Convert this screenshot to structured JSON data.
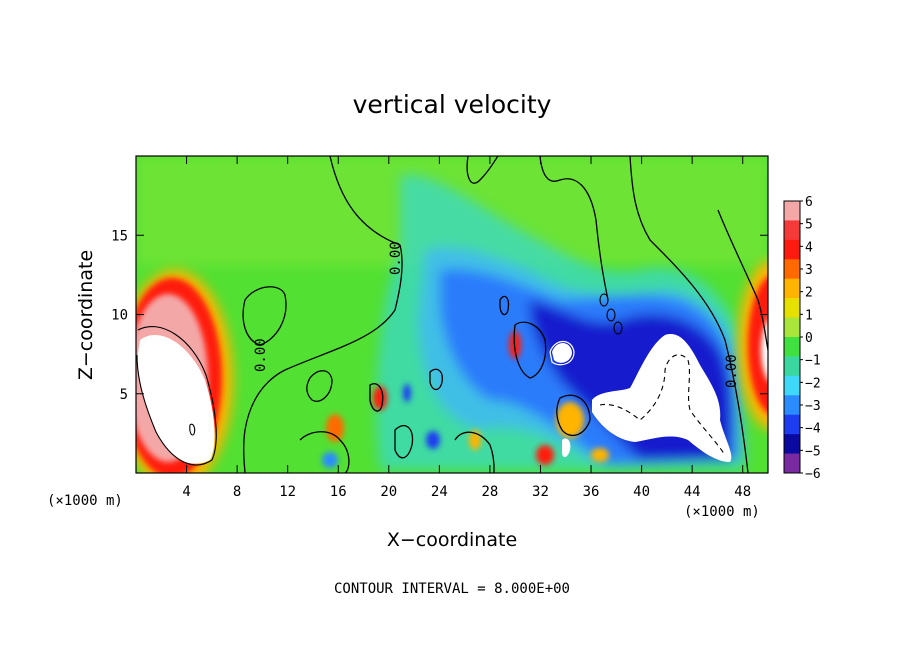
{
  "chart_data": {
    "type": "heatmap",
    "title": "vertical velocity",
    "xlabel": "X−coordinate",
    "ylabel": "Z−coordinate",
    "x_unit_label": "(×1000 m)",
    "y_unit_label": "(×1000 m)",
    "xlim": [
      0,
      50
    ],
    "ylim": [
      0,
      20
    ],
    "x_ticks": [
      "4",
      "8",
      "12",
      "16",
      "20",
      "24",
      "28",
      "32",
      "36",
      "40",
      "44",
      "48"
    ],
    "y_ticks": [
      "5",
      "10",
      "15"
    ],
    "colorbar": {
      "levels": [
        "6",
        "5",
        "4",
        "3",
        "2",
        "1",
        "0",
        "−1",
        "−2",
        "−3",
        "−4",
        "−5",
        "−6"
      ],
      "range": [
        -6,
        6
      ],
      "colors": [
        "#f4a7a7",
        "#f53a3a",
        "#ff1a10",
        "#ff6a00",
        "#ffb400",
        "#e6e000",
        "#a8e63c",
        "#40e040",
        "#3ad8a0",
        "#40d8f8",
        "#2a8cff",
        "#1e3cf0",
        "#0a0aa0",
        "#7a2aa0"
      ]
    },
    "contour_labels": [
      "0.00",
      "0.00",
      "0.00",
      "0.00",
      "0.00"
    ],
    "note": "CONTOUR INTERVAL = 8.000E+00",
    "features": [
      {
        "x": 4,
        "z": 7,
        "w": 8.5,
        "note": "strong updraft, core above scale (white)"
      },
      {
        "x": 49,
        "z": 7,
        "w": 7,
        "note": "updraft at right edge"
      },
      {
        "x": 42,
        "z": 4,
        "w": -7,
        "note": "strong downdraft, core below scale"
      },
      {
        "x": 34,
        "z": 7,
        "w": -6.5,
        "note": "downdraft"
      },
      {
        "x": 29,
        "z": 8,
        "w": -5,
        "note": "downdraft"
      },
      {
        "x": 26,
        "z": 8,
        "w": -3,
        "note": "weak downdraft"
      }
    ]
  }
}
